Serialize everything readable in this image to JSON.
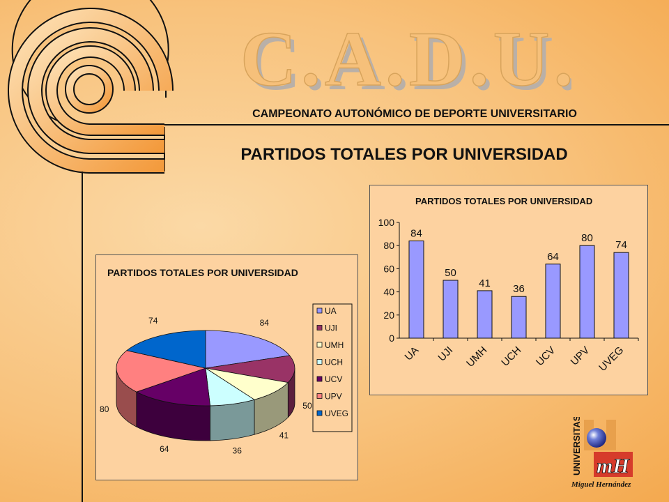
{
  "header": {
    "logo_text": "C.A.D.U.",
    "subtitle": "CAMPEONATO AUTONÓMICO DE DEPORTE UNIVERSITARIO"
  },
  "main_title": "PARTIDOS TOTALES POR UNIVERSIDAD",
  "university_logo": {
    "vertical_text": "UNIVERSITAS",
    "monogram": "mH",
    "name": "Miguel Hernández"
  },
  "colors": {
    "bar": "#9999ff",
    "pie": [
      "#9999ff",
      "#993366",
      "#ffffcc",
      "#ccffff",
      "#660066",
      "#ff8080",
      "#0066cc"
    ]
  },
  "chart_data": [
    {
      "type": "pie",
      "title": "PARTIDOS TOTALES POR UNIVERSIDAD",
      "categories": [
        "UA",
        "UJI",
        "UMH",
        "UCH",
        "UCV",
        "UPV",
        "UVEG"
      ],
      "values": [
        84,
        50,
        41,
        36,
        64,
        80,
        74
      ],
      "legend": "right",
      "three_d": true
    },
    {
      "type": "bar",
      "title": "PARTIDOS TOTALES POR UNIVERSIDAD",
      "categories": [
        "UA",
        "UJI",
        "UMH",
        "UCH",
        "UCV",
        "UPV",
        "UVEG"
      ],
      "values": [
        84,
        50,
        41,
        36,
        64,
        80,
        74
      ],
      "ylim": [
        0,
        100
      ],
      "yticks": [
        0,
        20,
        40,
        60,
        80,
        100
      ],
      "grid": false,
      "data_labels": true
    }
  ]
}
